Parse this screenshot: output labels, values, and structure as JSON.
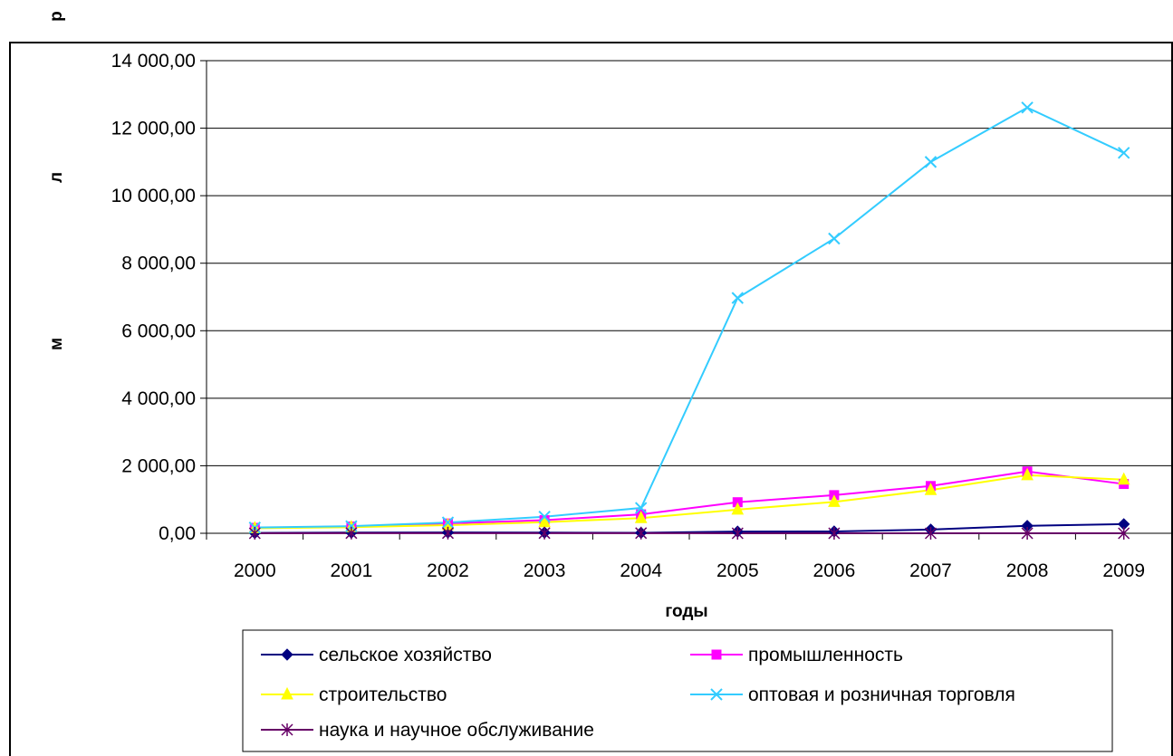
{
  "chart_data": {
    "type": "line",
    "xlabel": "годы",
    "ylabel_chars": [
      "р",
      "л",
      "м"
    ],
    "categories": [
      "2000",
      "2001",
      "2002",
      "2003",
      "2004",
      "2005",
      "2006",
      "2007",
      "2008",
      "2009"
    ],
    "ylim": [
      0,
      14000
    ],
    "yticks": [
      0,
      2000,
      4000,
      6000,
      8000,
      10000,
      12000,
      14000
    ],
    "ytick_labels": [
      "0,00",
      "2 000,00",
      "4 000,00",
      "6 000,00",
      "8 000,00",
      "10 000,00",
      "12 000,00",
      "14 000,00"
    ],
    "grid": true,
    "legend_position": "bottom",
    "series": [
      {
        "name": "сельское хозяйство",
        "color": "#000080",
        "marker": "diamond",
        "values": [
          10,
          20,
          25,
          20,
          15,
          50,
          55,
          110,
          220,
          270
        ]
      },
      {
        "name": "промышленность",
        "color": "#FF00FF",
        "marker": "square",
        "values": [
          160,
          200,
          290,
          390,
          560,
          920,
          1130,
          1400,
          1830,
          1460
        ]
      },
      {
        "name": "строительство",
        "color": "#FFFF00",
        "marker": "triangle",
        "values": [
          150,
          180,
          240,
          330,
          450,
          700,
          930,
          1280,
          1720,
          1590
        ]
      },
      {
        "name": "оптовая и розничная торговля",
        "color": "#33CCFF",
        "marker": "x",
        "values": [
          170,
          210,
          320,
          490,
          750,
          6970,
          8730,
          11000,
          12610,
          11270
        ]
      },
      {
        "name": "наука и научное обслуживание",
        "color": "#660066",
        "marker": "star",
        "values": [
          0,
          5,
          5,
          5,
          5,
          0,
          0,
          0,
          0,
          0
        ]
      }
    ]
  }
}
